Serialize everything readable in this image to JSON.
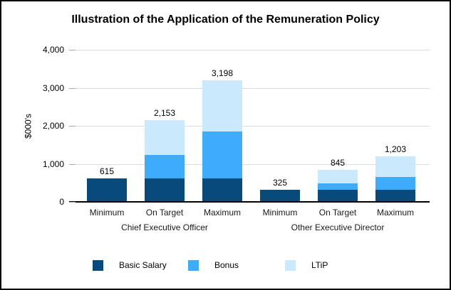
{
  "chart_data": {
    "type": "stacked-bar",
    "title": "Illustration of the Application of the Remuneration Policy",
    "ylabel": "$000's",
    "ylim": [
      0,
      4000
    ],
    "ytick_values": [
      0,
      1000,
      2000,
      3000,
      4000
    ],
    "ytick_labels": [
      "0",
      "1,000",
      "2,000",
      "3,000",
      "4,000"
    ],
    "grid": true,
    "categories": [
      "Minimum",
      "On Target",
      "Maximum",
      "Minimum",
      "On Target",
      "Maximum"
    ],
    "groups": [
      {
        "label": "Chief Executive Officer",
        "center_slot": 1
      },
      {
        "label": "Other Executive Director",
        "center_slot": 4
      }
    ],
    "series": [
      {
        "name": "Basic Salary",
        "color": "#084a7c",
        "values": [
          615,
          615,
          615,
          325,
          325,
          325
        ]
      },
      {
        "name": "Bonus",
        "color": "#3fabfb",
        "values": [
          0,
          615,
          1230,
          0,
          163,
          325
        ]
      },
      {
        "name": "LTiP",
        "color": "#cae9fc",
        "values": [
          0,
          923,
          1353,
          0,
          357,
          553
        ]
      }
    ],
    "totals": [
      615,
      2153,
      3198,
      325,
      845,
      1203
    ],
    "total_labels": [
      "615",
      "2,153",
      "3,198",
      "325",
      "845",
      "1,203"
    ],
    "legend_position": "bottom"
  }
}
